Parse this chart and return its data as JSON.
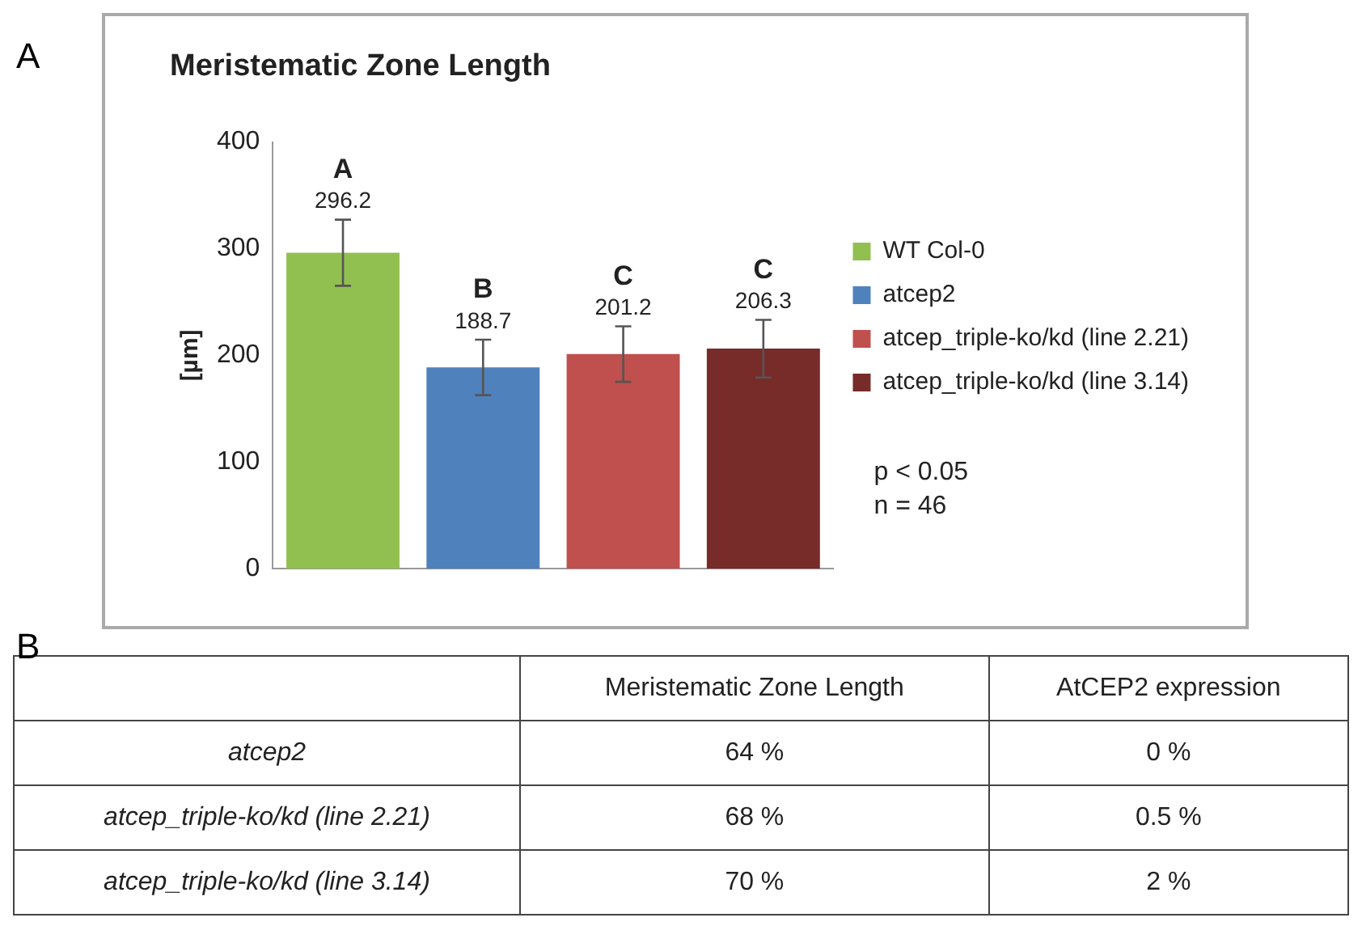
{
  "chart_data": [
    {
      "type": "bar",
      "title": "Meristematic Zone Length",
      "ylabel": "[µm]",
      "categories": [
        null,
        null,
        null,
        null
      ],
      "series": [
        {
          "name": "WT Col-0",
          "color": "#92c050",
          "values": [
            296.2,
            null,
            null,
            null
          ],
          "errors": [
            31,
            null,
            null,
            null
          ]
        },
        {
          "name": "atcep2",
          "color": "#4f81bd",
          "values": [
            null,
            188.7,
            null,
            null
          ],
          "errors": [
            null,
            26,
            null,
            null
          ]
        },
        {
          "name": "atcep_triple-ko/kd (line 2.21)",
          "color": "#c0504d",
          "values": [
            null,
            null,
            201.2,
            null
          ],
          "errors": [
            null,
            null,
            26,
            null
          ]
        },
        {
          "name": "atcep_triple-ko/kd (line 3.14)",
          "color": "#772c2a",
          "values": [
            null,
            null,
            null,
            206.3
          ],
          "errors": [
            null,
            null,
            null,
            27
          ]
        }
      ],
      "ylim": [
        0,
        400
      ],
      "yticks": [
        0,
        100,
        200,
        300,
        400
      ],
      "grid": false,
      "legend": "right",
      "data_labels": true,
      "annotations": [
        "A",
        "A",
        "B",
        "C",
        "C",
        "p < 0.05",
        "n = 46"
      ]
    },
    {
      "type": "other",
      "annotations": [
        "B"
      ],
      "categories": [
        "Meristematic Zone Length",
        "AtCEP2 expression"
      ],
      "y_categories": [
        "atcep2",
        "atcep_triple-ko/kd (line 2.21)",
        "atcep_triple-ko/kd (line 3.14)"
      ],
      "cell_labels": [
        [
          "64 %",
          "0 %"
        ],
        [
          "68 %",
          "0.5 %"
        ],
        [
          "70 %",
          "2 %"
        ]
      ]
    }
  ]
}
